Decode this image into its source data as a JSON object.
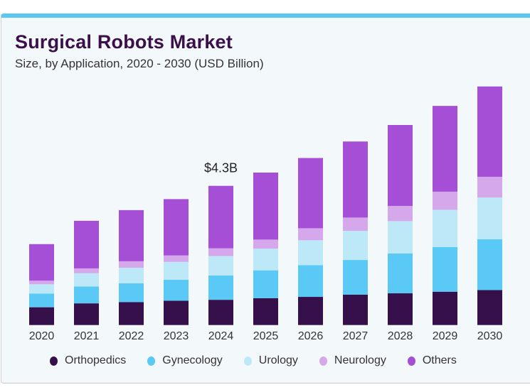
{
  "chart_data": {
    "type": "bar",
    "stacked": true,
    "title": "Surgical Robots Market",
    "subtitle": "Size, by Application, 2020 - 2030 (USD Billion)",
    "categories": [
      "2020",
      "2021",
      "2022",
      "2023",
      "2024",
      "2025",
      "2026",
      "2027",
      "2028",
      "2029",
      "2030"
    ],
    "series": [
      {
        "name": "Orthopedics",
        "color": "#36104a",
        "values": [
          0.55,
          0.67,
          0.71,
          0.75,
          0.78,
          0.83,
          0.87,
          0.94,
          0.98,
          1.03,
          1.08
        ]
      },
      {
        "name": "Gynecology",
        "color": "#5bc9f5",
        "values": [
          0.42,
          0.52,
          0.58,
          0.65,
          0.75,
          0.86,
          0.98,
          1.07,
          1.23,
          1.38,
          1.57
        ]
      },
      {
        "name": "Urology",
        "color": "#bde8f8",
        "values": [
          0.29,
          0.41,
          0.48,
          0.55,
          0.6,
          0.67,
          0.77,
          0.9,
          1.0,
          1.15,
          1.29
        ]
      },
      {
        "name": "Neurology",
        "color": "#d5a8ec",
        "values": [
          0.11,
          0.15,
          0.2,
          0.2,
          0.24,
          0.28,
          0.37,
          0.41,
          0.47,
          0.56,
          0.64
        ]
      },
      {
        "name": "Others",
        "color": "#a54fd6",
        "values": [
          1.13,
          1.47,
          1.58,
          1.74,
          1.93,
          2.07,
          2.17,
          2.35,
          2.5,
          2.65,
          2.79
        ]
      }
    ],
    "annotations": [
      {
        "category": "2024",
        "text": "$4.3B"
      }
    ],
    "legend": "bottom",
    "grid": false,
    "ylim": [
      0,
      7.4
    ]
  }
}
